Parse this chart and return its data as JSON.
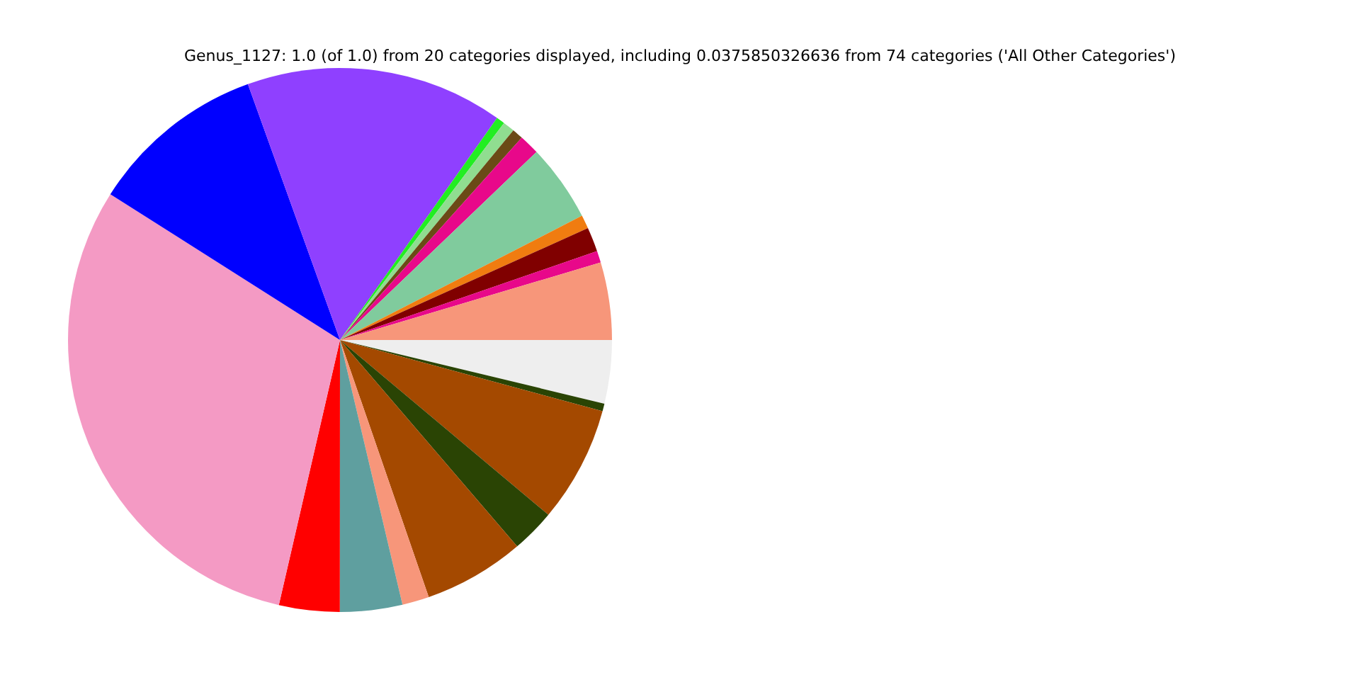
{
  "chart_data": {
    "type": "pie",
    "title": "Genus_1127: 1.0 (of 1.0) from 20 categories displayed, including 0.0375850326636 from 74 categories ('All Other Categories')",
    "categories": [
      null,
      null,
      null,
      null,
      null,
      null,
      null,
      null,
      null,
      null,
      null,
      null,
      null,
      null,
      null,
      null,
      null,
      null,
      null,
      null
    ],
    "values": [
      3.76,
      0.45,
      6.9,
      2.6,
      6.0,
      1.6,
      3.7,
      3.6,
      30.39,
      10.5,
      15.3,
      0.5,
      0.7,
      0.65,
      1.2,
      4.6,
      0.8,
      1.45,
      0.7,
      4.6
    ],
    "colors": [
      "#eeeeee",
      "#2a4404",
      "#a44900",
      "#2a4404",
      "#a44900",
      "#f7967a",
      "#5f9f9f",
      "#ff0000",
      "#f49ac4",
      "#0000ff",
      "#8f40ff",
      "#22ee22",
      "#90dd90",
      "#6b4a16",
      "#e8088a",
      "#80cb9d",
      "#f07c10",
      "#800000",
      "#e8088a",
      "#f7967a"
    ],
    "legend": false
  }
}
